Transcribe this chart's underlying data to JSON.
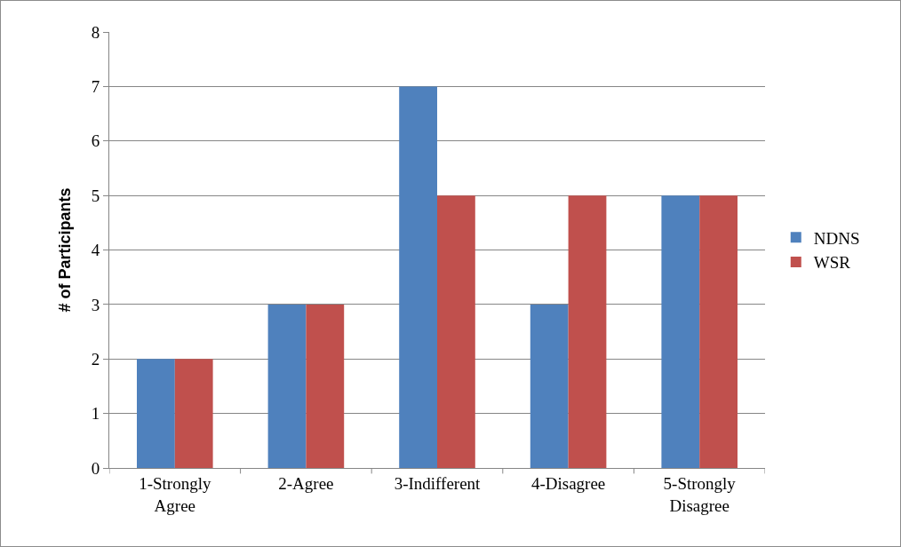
{
  "chart_data": {
    "type": "bar",
    "ylabel": "# of Participants",
    "categories": [
      "1-Strongly Agree",
      "2-Agree",
      "3-Indifferent",
      "4-Disagree",
      "5-Strongly Disagree"
    ],
    "series": [
      {
        "name": "NDNS",
        "color": "#4f81bd",
        "values": [
          2,
          3,
          7,
          3,
          5
        ]
      },
      {
        "name": "WSR",
        "color": "#c0504d",
        "values": [
          2,
          3,
          5,
          5,
          5
        ]
      }
    ],
    "ylim": [
      0,
      8
    ],
    "yticks": [
      0,
      1,
      2,
      3,
      4,
      5,
      6,
      7,
      8
    ],
    "grid": "y",
    "legend": "right"
  }
}
